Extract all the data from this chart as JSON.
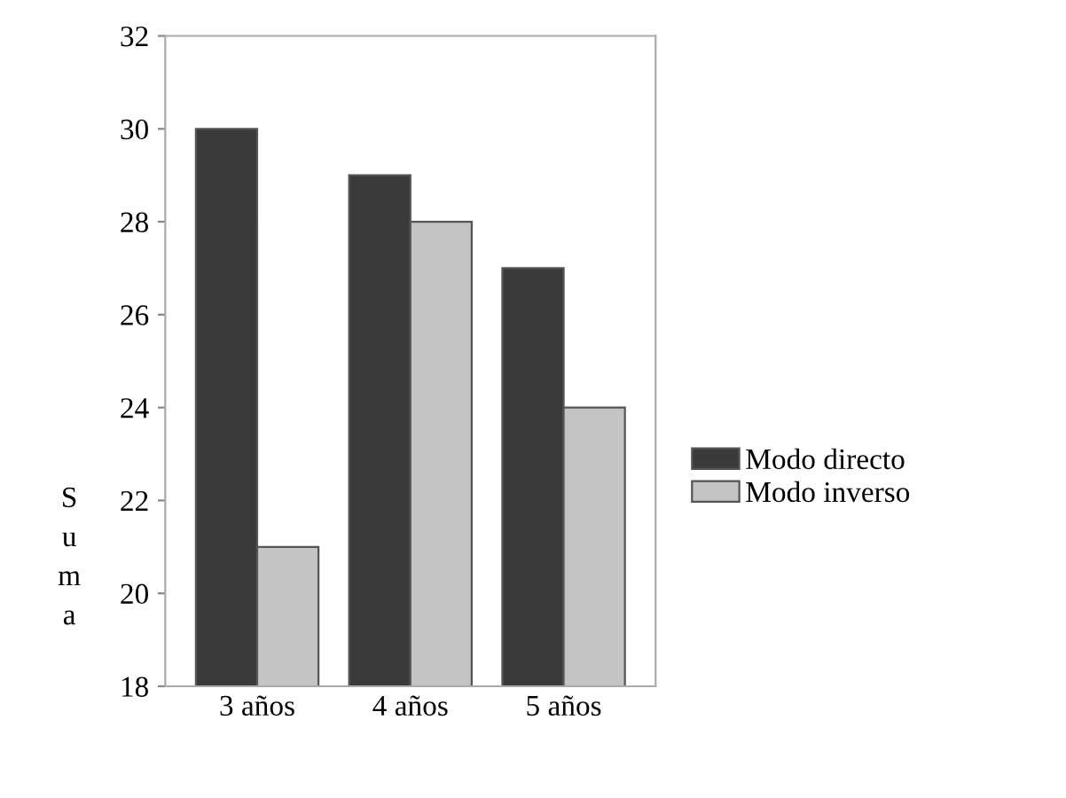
{
  "chart_data": {
    "type": "bar",
    "ylabel": "Suma",
    "categories": [
      "3 años",
      "4 años",
      "5 años"
    ],
    "series": [
      {
        "name": "Modo directo",
        "color": "#3a3a3a",
        "values": [
          30,
          29,
          27
        ]
      },
      {
        "name": "Modo inverso",
        "color": "#c4c4c4",
        "values": [
          21,
          28,
          24
        ]
      }
    ],
    "ylim": [
      18,
      32
    ],
    "yticks": [
      18,
      20,
      22,
      24,
      26,
      28,
      30,
      32
    ],
    "grid": false,
    "legend": "right"
  }
}
